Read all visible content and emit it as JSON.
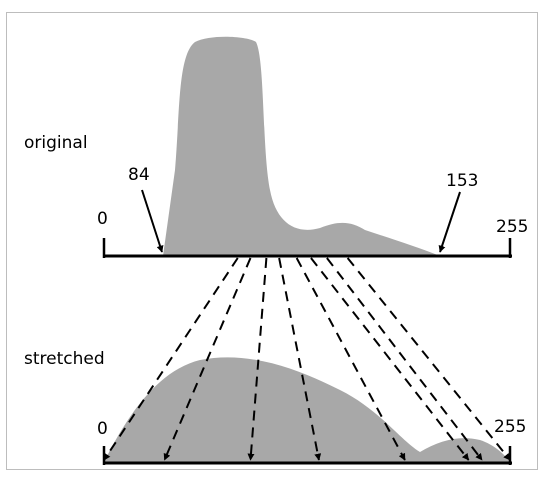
{
  "labels": {
    "original": "original",
    "stretched": "stretched",
    "orig_min": "0",
    "orig_max": "255",
    "low_cut": "84",
    "high_cut": "153",
    "str_min": "0",
    "str_max": "255"
  },
  "colors": {
    "histogram_fill": "#a8a8a8",
    "axis": "#000000",
    "frame": "#bdbdbd"
  },
  "mapping": {
    "source_values": [
      84,
      92,
      102,
      110,
      121,
      130,
      140,
      153
    ],
    "stretched_values": [
      0,
      38,
      92,
      135,
      189,
      229,
      255,
      255
    ]
  }
}
